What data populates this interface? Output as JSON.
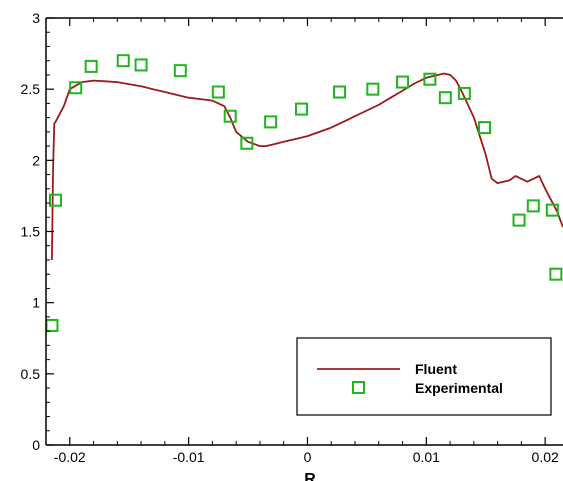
{
  "chart_data": {
    "type": "line",
    "xlabel": "R",
    "ylabel": "",
    "xlim": [
      -0.022,
      0.0215
    ],
    "ylim": [
      0,
      3
    ],
    "x_ticks": [
      -0.02,
      -0.01,
      0,
      0.01,
      0.02
    ],
    "x_tick_labels": [
      "-0.02",
      "-0.01",
      "0",
      "0.01",
      "0.02"
    ],
    "y_ticks": [
      0,
      0.5,
      1,
      1.5,
      2,
      2.5,
      3
    ],
    "y_tick_labels": [
      "0",
      "0.5",
      "1",
      "1.5",
      "2",
      "2.5",
      "3"
    ],
    "legend_position": "bottom-right",
    "series": [
      {
        "name": "Fluent",
        "kind": "line",
        "color": "#9b1b1b",
        "x": [
          -0.0215,
          -0.0214,
          -0.0213,
          -0.0212,
          -0.0205,
          -0.02,
          -0.019,
          -0.018,
          -0.017,
          -0.016,
          -0.015,
          -0.014,
          -0.013,
          -0.012,
          -0.011,
          -0.01,
          -0.009,
          -0.008,
          -0.007,
          -0.0065,
          -0.006,
          -0.005,
          -0.004,
          -0.0035,
          -0.003,
          -0.002,
          -0.001,
          0.0,
          0.001,
          0.002,
          0.003,
          0.004,
          0.005,
          0.006,
          0.007,
          0.008,
          0.009,
          0.01,
          0.011,
          0.0115,
          0.012,
          0.0125,
          0.013,
          0.014,
          0.015,
          0.0155,
          0.016,
          0.017,
          0.0175,
          0.018,
          0.0185,
          0.019,
          0.0195,
          0.02,
          0.021,
          0.0215
        ],
        "y": [
          1.3,
          1.95,
          2.26,
          2.27,
          2.38,
          2.5,
          2.55,
          2.56,
          2.555,
          2.55,
          2.535,
          2.52,
          2.5,
          2.48,
          2.46,
          2.44,
          2.43,
          2.42,
          2.38,
          2.3,
          2.2,
          2.13,
          2.1,
          2.1,
          2.11,
          2.13,
          2.15,
          2.17,
          2.2,
          2.23,
          2.27,
          2.31,
          2.35,
          2.39,
          2.44,
          2.49,
          2.54,
          2.58,
          2.6,
          2.61,
          2.6,
          2.56,
          2.48,
          2.3,
          2.04,
          1.87,
          1.84,
          1.86,
          1.89,
          1.87,
          1.85,
          1.87,
          1.89,
          1.8,
          1.64,
          1.53
        ]
      },
      {
        "name": "Experimental",
        "kind": "scatter",
        "color": "#1eb51e",
        "x": [
          -0.0215,
          -0.0212,
          -0.0195,
          -0.0182,
          -0.0155,
          -0.014,
          -0.0107,
          -0.0075,
          -0.0065,
          -0.0051,
          -0.0031,
          -0.0005,
          0.0027,
          0.0055,
          0.008,
          0.0103,
          0.0116,
          0.0132,
          0.0149,
          0.0178,
          0.019,
          0.0206,
          0.0209
        ],
        "y": [
          0.84,
          1.72,
          2.51,
          2.66,
          2.7,
          2.67,
          2.63,
          2.48,
          2.31,
          2.12,
          2.27,
          2.36,
          2.48,
          2.5,
          2.55,
          2.57,
          2.44,
          2.47,
          2.23,
          1.58,
          1.68,
          1.65,
          1.2
        ]
      }
    ]
  }
}
